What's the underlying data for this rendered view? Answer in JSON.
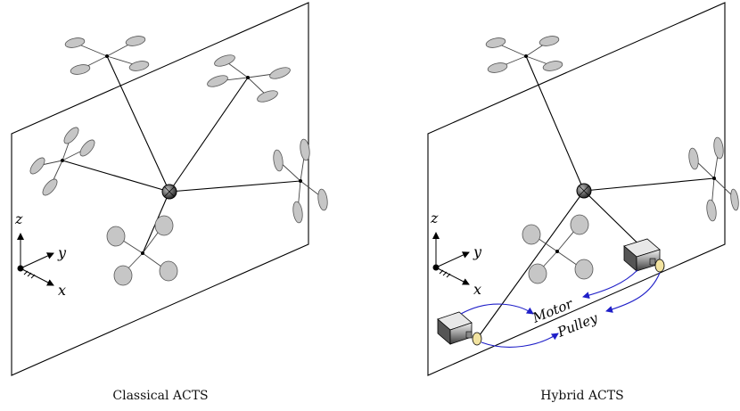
{
  "left_panel": {
    "caption": "Classical ACTS",
    "axes": {
      "z": "z",
      "y": "y",
      "x": "x"
    }
  },
  "right_panel": {
    "caption": "Hybrid ACTS",
    "axes": {
      "z": "z",
      "y": "y",
      "x": "x"
    },
    "annotations": {
      "motor": "Motor",
      "pulley": "Pulley"
    }
  },
  "colors": {
    "cable_arrows": "#1f1fc8",
    "propellers": "#c6c6c6",
    "pulley": "#f2e3a0"
  }
}
